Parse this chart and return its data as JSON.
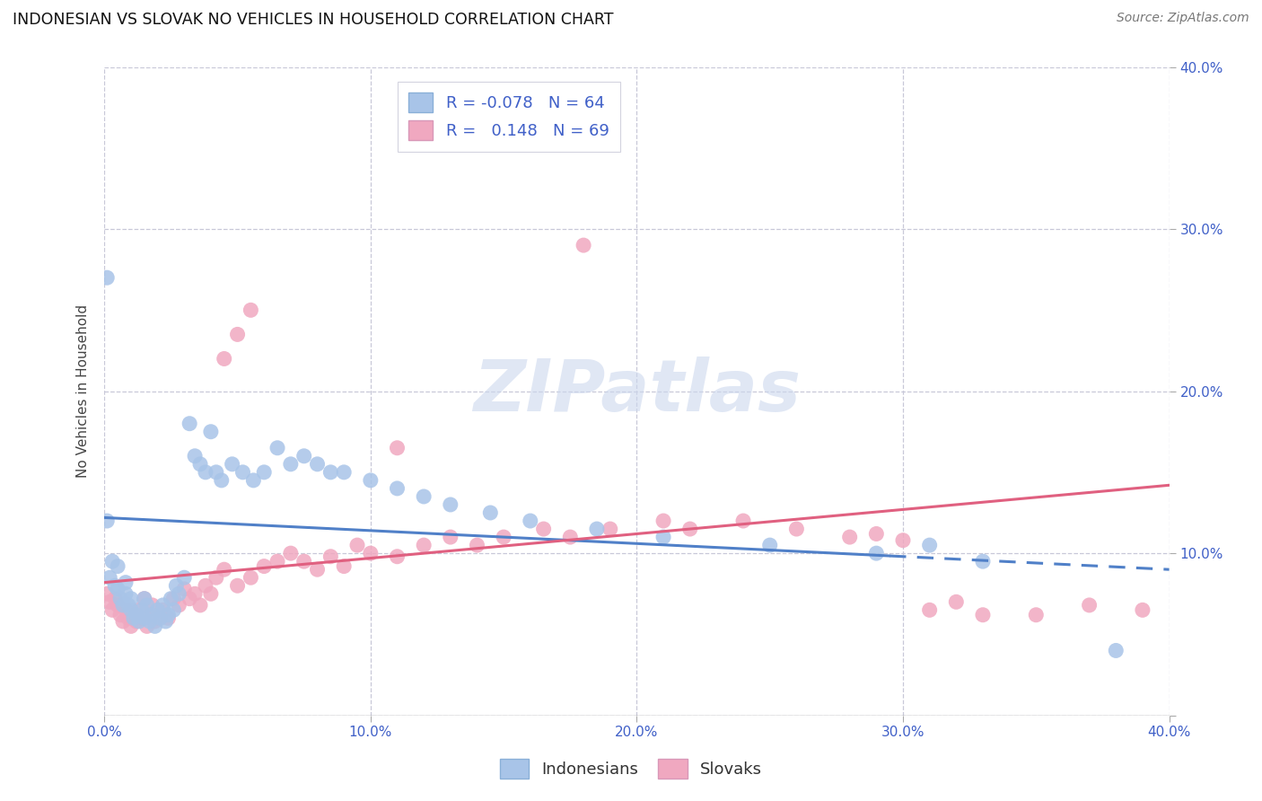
{
  "title": "INDONESIAN VS SLOVAK NO VEHICLES IN HOUSEHOLD CORRELATION CHART",
  "source": "Source: ZipAtlas.com",
  "ylabel": "No Vehicles in Household",
  "xlim": [
    0.0,
    0.4
  ],
  "ylim": [
    0.0,
    0.4
  ],
  "x_ticks": [
    0.0,
    0.1,
    0.2,
    0.3,
    0.4
  ],
  "y_ticks": [
    0.0,
    0.1,
    0.2,
    0.3,
    0.4
  ],
  "x_tick_labels": [
    "0.0%",
    "10.0%",
    "20.0%",
    "30.0%",
    "40.0%"
  ],
  "y_tick_labels_right": [
    "",
    "10.0%",
    "20.0%",
    "30.0%",
    "40.0%"
  ],
  "indonesian_color": "#a8c4e8",
  "slovak_color": "#f0a8c0",
  "indonesian_line_color": "#5080c8",
  "slovak_line_color": "#e06080",
  "r_indonesian": -0.078,
  "n_indonesian": 64,
  "r_slovak": 0.148,
  "n_slovak": 69,
  "indo_line_solid_end": 0.295,
  "indo_line_start_y": 0.122,
  "indo_line_end_y": 0.09,
  "slov_line_start_y": 0.082,
  "slov_line_end_y": 0.142,
  "indonesian_x": [
    0.001,
    0.002,
    0.003,
    0.004,
    0.005,
    0.005,
    0.006,
    0.007,
    0.008,
    0.008,
    0.009,
    0.01,
    0.01,
    0.011,
    0.012,
    0.013,
    0.014,
    0.015,
    0.015,
    0.016,
    0.017,
    0.018,
    0.019,
    0.02,
    0.021,
    0.022,
    0.023,
    0.024,
    0.025,
    0.026,
    0.027,
    0.028,
    0.03,
    0.032,
    0.034,
    0.036,
    0.038,
    0.04,
    0.042,
    0.044,
    0.048,
    0.052,
    0.056,
    0.06,
    0.065,
    0.07,
    0.075,
    0.08,
    0.085,
    0.09,
    0.1,
    0.11,
    0.12,
    0.13,
    0.145,
    0.16,
    0.185,
    0.21,
    0.25,
    0.29,
    0.31,
    0.33,
    0.38,
    0.001
  ],
  "indonesian_y": [
    0.12,
    0.085,
    0.095,
    0.08,
    0.078,
    0.092,
    0.072,
    0.068,
    0.075,
    0.082,
    0.068,
    0.065,
    0.072,
    0.06,
    0.062,
    0.058,
    0.065,
    0.06,
    0.072,
    0.068,
    0.058,
    0.062,
    0.055,
    0.065,
    0.06,
    0.068,
    0.058,
    0.062,
    0.072,
    0.065,
    0.08,
    0.075,
    0.085,
    0.18,
    0.16,
    0.155,
    0.15,
    0.175,
    0.15,
    0.145,
    0.155,
    0.15,
    0.145,
    0.15,
    0.165,
    0.155,
    0.16,
    0.155,
    0.15,
    0.15,
    0.145,
    0.14,
    0.135,
    0.13,
    0.125,
    0.12,
    0.115,
    0.11,
    0.105,
    0.1,
    0.105,
    0.095,
    0.04,
    0.27
  ],
  "slovak_x": [
    0.001,
    0.002,
    0.003,
    0.004,
    0.005,
    0.006,
    0.007,
    0.008,
    0.009,
    0.01,
    0.011,
    0.012,
    0.013,
    0.014,
    0.015,
    0.016,
    0.017,
    0.018,
    0.019,
    0.02,
    0.022,
    0.024,
    0.026,
    0.028,
    0.03,
    0.032,
    0.034,
    0.036,
    0.038,
    0.04,
    0.042,
    0.045,
    0.05,
    0.055,
    0.06,
    0.065,
    0.07,
    0.075,
    0.08,
    0.085,
    0.09,
    0.095,
    0.1,
    0.11,
    0.12,
    0.13,
    0.14,
    0.15,
    0.165,
    0.175,
    0.19,
    0.21,
    0.22,
    0.24,
    0.26,
    0.28,
    0.29,
    0.3,
    0.31,
    0.32,
    0.33,
    0.35,
    0.37,
    0.39,
    0.045,
    0.05,
    0.055,
    0.11,
    0.18
  ],
  "slovak_y": [
    0.075,
    0.07,
    0.065,
    0.072,
    0.068,
    0.062,
    0.058,
    0.065,
    0.06,
    0.055,
    0.062,
    0.058,
    0.065,
    0.06,
    0.072,
    0.055,
    0.062,
    0.068,
    0.058,
    0.06,
    0.065,
    0.06,
    0.072,
    0.068,
    0.078,
    0.072,
    0.075,
    0.068,
    0.08,
    0.075,
    0.085,
    0.09,
    0.08,
    0.085,
    0.092,
    0.095,
    0.1,
    0.095,
    0.09,
    0.098,
    0.092,
    0.105,
    0.1,
    0.098,
    0.105,
    0.11,
    0.105,
    0.11,
    0.115,
    0.11,
    0.115,
    0.12,
    0.115,
    0.12,
    0.115,
    0.11,
    0.112,
    0.108,
    0.065,
    0.07,
    0.062,
    0.062,
    0.068,
    0.065,
    0.22,
    0.235,
    0.25,
    0.165,
    0.29
  ]
}
